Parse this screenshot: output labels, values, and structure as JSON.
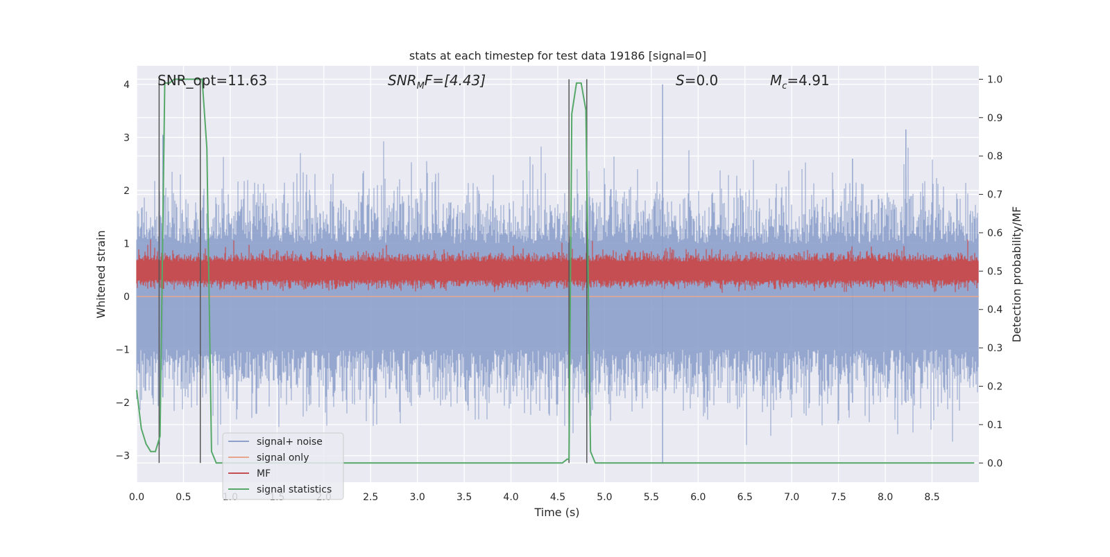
{
  "chart_data": {
    "type": "line",
    "title": "stats at each timestep for test data 19186 [signal=0]",
    "xlabel": "Time (s)",
    "ylabel_left": "Whitened strain",
    "ylabel_right": "Detection probability/MF",
    "xlim": [
      0.0,
      9.0
    ],
    "ylim_left": [
      -3.5,
      4.35
    ],
    "ylim_right": [
      -0.05,
      1.035
    ],
    "x_ticks": [
      0.0,
      0.5,
      1.0,
      1.5,
      2.0,
      2.5,
      3.0,
      3.5,
      4.0,
      4.5,
      5.0,
      5.5,
      6.0,
      6.5,
      7.0,
      7.5,
      8.0,
      8.5
    ],
    "x_tick_labels": [
      "0.0",
      "0.5",
      "1.0",
      "1.5",
      "2.0",
      "2.5",
      "3.0",
      "3.5",
      "4.0",
      "4.5",
      "5.0",
      "5.5",
      "6.0",
      "6.5",
      "7.0",
      "7.5",
      "8.0",
      "8.5"
    ],
    "y_left_ticks": [
      -3,
      -2,
      -1,
      0,
      1,
      2,
      3,
      4
    ],
    "y_left_tick_labels": [
      "−3",
      "−2",
      "−1",
      "0",
      "1",
      "2",
      "3",
      "4"
    ],
    "y_right_ticks": [
      0.0,
      0.1,
      0.2,
      0.3,
      0.4,
      0.5,
      0.6,
      0.7,
      0.8,
      0.9,
      1.0
    ],
    "y_right_tick_labels": [
      "0.0",
      "0.1",
      "0.2",
      "0.3",
      "0.4",
      "0.5",
      "0.6",
      "0.7",
      "0.8",
      "0.9",
      "1.0"
    ],
    "annotations": {
      "snr_opt": "SNR_opt=11.63",
      "snr_mf_name": "SNR",
      "snr_mf_sub": "M",
      "snr_mf_tail": "F=[4.43]",
      "s_name": "S",
      "s_value": "=0.0",
      "mc_name": "M",
      "mc_sub": "c",
      "mc_value": "=4.91"
    },
    "legend": {
      "position": "lower-left",
      "entries": [
        {
          "label": "signal+ noise",
          "color": "#8da0cb"
        },
        {
          "label": "signal only",
          "color": "#e8a58c"
        },
        {
          "label": "MF",
          "color": "#c44e52"
        },
        {
          "label": "signal statistics",
          "color": "#55a868"
        }
      ]
    },
    "series": [
      {
        "name": "signal+ noise",
        "axis": "left",
        "color": "#8da0cb",
        "center": 0.0,
        "typical_range": [
          -2.0,
          2.0
        ],
        "extremes": [
          -3.15,
          4.0
        ]
      },
      {
        "name": "signal only",
        "axis": "left",
        "color": "#e8a58c",
        "values_constant": 0.0
      },
      {
        "name": "MF",
        "axis": "right",
        "color": "#c44e52",
        "typical_range": [
          0.45,
          0.55
        ],
        "extremes": [
          0.44,
          0.59
        ]
      },
      {
        "name": "signal statistics",
        "axis": "right",
        "color": "#55a868",
        "x": [
          0.0,
          0.05,
          0.1,
          0.15,
          0.2,
          0.25,
          0.3,
          0.35,
          0.4,
          0.5,
          0.6,
          0.7,
          0.75,
          0.8,
          0.85,
          0.9,
          1.0,
          4.55,
          4.6,
          4.62,
          4.65,
          4.7,
          4.75,
          4.8,
          4.85,
          4.9,
          4.95,
          5.0,
          8.95
        ],
        "y": [
          0.19,
          0.09,
          0.05,
          0.03,
          0.03,
          0.07,
          0.99,
          0.99,
          1.0,
          1.0,
          1.0,
          1.0,
          0.82,
          0.03,
          0.0,
          0.0,
          0.0,
          0.0,
          0.01,
          0.01,
          0.91,
          0.99,
          0.99,
          0.92,
          0.03,
          0.0,
          0.0,
          0.0,
          0.0
        ]
      }
    ],
    "vertical_lines_x": [
      0.24,
      0.68,
      4.62,
      4.81
    ]
  }
}
